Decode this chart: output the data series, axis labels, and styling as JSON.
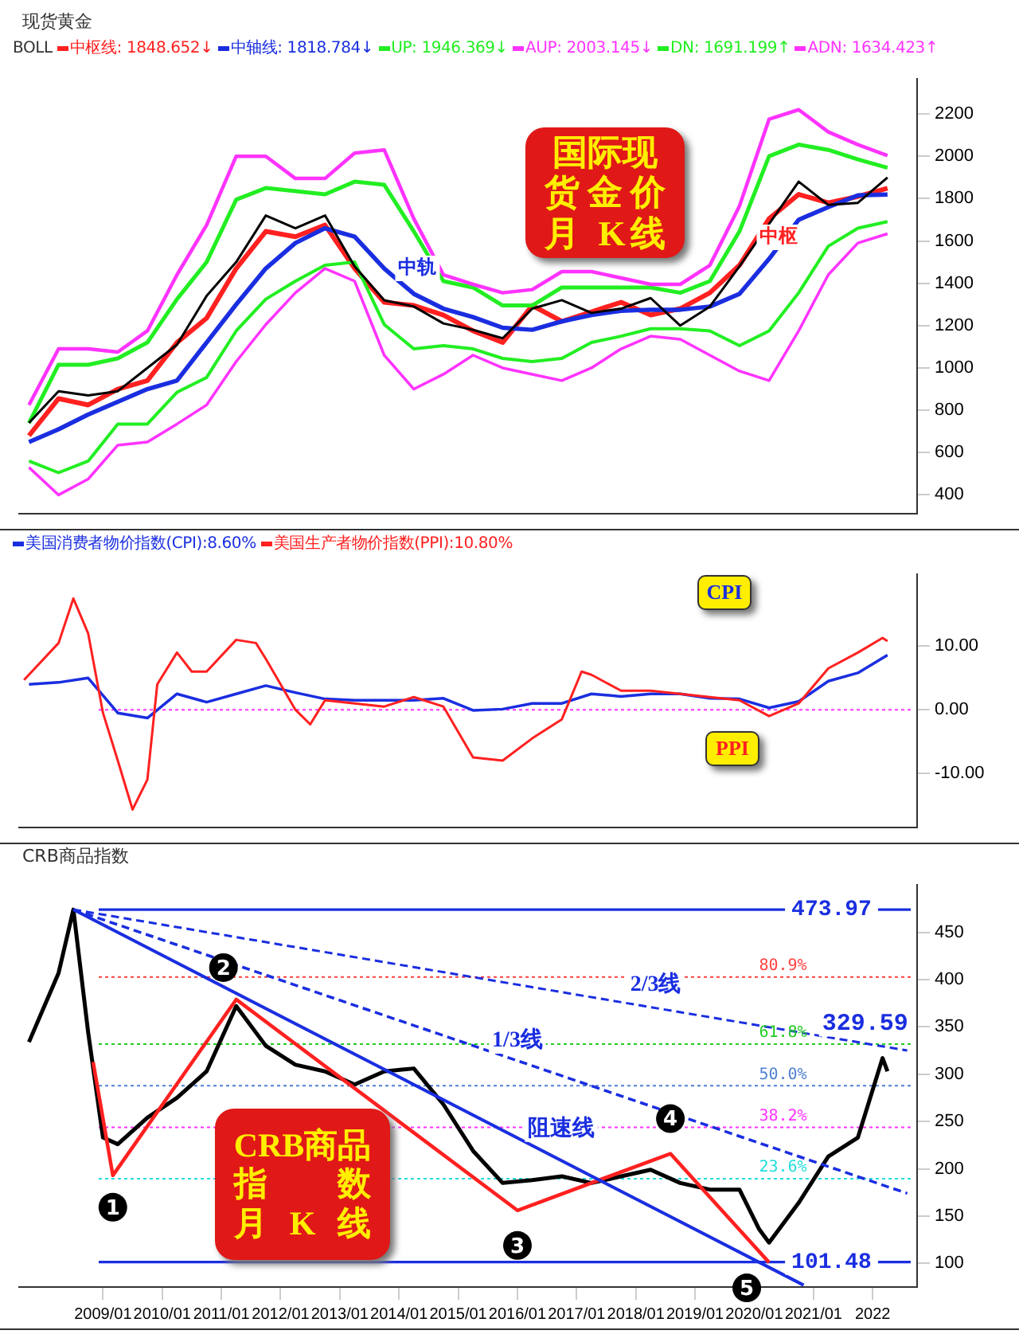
{
  "chart_data": [
    {
      "type": "line",
      "title": "现货黄金",
      "legend_title": "BOLL",
      "legend": "top",
      "grid": false,
      "tick_labels": "y",
      "xlim": [
        "2007-08",
        "2022-10"
      ],
      "ylim": [
        312,
        2365
      ],
      "yticks": [
        400,
        600,
        800,
        1000,
        1200,
        1400,
        1600,
        1800,
        2000,
        2200
      ],
      "x": [
        "2007-10",
        "2008-04",
        "2008-10",
        "2009-04",
        "2009-10",
        "2010-04",
        "2010-10",
        "2011-04",
        "2011-10",
        "2012-04",
        "2012-10",
        "2013-04",
        "2013-10",
        "2014-04",
        "2014-10",
        "2015-04",
        "2015-10",
        "2016-04",
        "2016-10",
        "2017-04",
        "2017-10",
        "2018-04",
        "2018-10",
        "2019-04",
        "2019-10",
        "2020-04",
        "2020-10",
        "2021-04",
        "2021-10",
        "2022-04"
      ],
      "series": [
        {
          "name": "中枢线: 1848.652↓",
          "color": "#ff2020",
          "values": [
            680,
            855,
            825,
            900,
            940,
            1120,
            1235,
            1470,
            1645,
            1620,
            1675,
            1470,
            1310,
            1295,
            1250,
            1175,
            1120,
            1295,
            1220,
            1265,
            1310,
            1250,
            1280,
            1355,
            1485,
            1705,
            1820,
            1780,
            1810,
            1849
          ]
        },
        {
          "name": "中轴线: 1818.784↓",
          "color": "#1a2ee0",
          "values": [
            650,
            710,
            780,
            840,
            900,
            940,
            1120,
            1300,
            1470,
            1590,
            1660,
            1620,
            1470,
            1350,
            1280,
            1240,
            1190,
            1180,
            1220,
            1250,
            1270,
            1275,
            1275,
            1290,
            1350,
            1515,
            1700,
            1760,
            1815,
            1819
          ]
        },
        {
          "name": "UP: 1946.369↓",
          "color": "#22ee22",
          "values": [
            740,
            1015,
            1015,
            1045,
            1120,
            1325,
            1500,
            1795,
            1850,
            1835,
            1820,
            1880,
            1865,
            1645,
            1410,
            1380,
            1295,
            1295,
            1380,
            1380,
            1380,
            1380,
            1355,
            1410,
            1645,
            2000,
            2055,
            2030,
            1985,
            1946
          ]
        },
        {
          "name": "AUP: 2003.145↓",
          "color": "#ff33ff",
          "values": [
            825,
            1090,
            1090,
            1075,
            1175,
            1440,
            1675,
            2000,
            2000,
            1895,
            1895,
            2015,
            2030,
            1705,
            1440,
            1395,
            1355,
            1370,
            1455,
            1455,
            1425,
            1395,
            1395,
            1485,
            1765,
            2175,
            2220,
            2115,
            2055,
            2003
          ]
        },
        {
          "name": "DN: 1691.199↑",
          "color": "#22ee22",
          "values": [
            560,
            505,
            560,
            735,
            735,
            885,
            955,
            1175,
            1325,
            1410,
            1485,
            1500,
            1205,
            1090,
            1105,
            1090,
            1045,
            1030,
            1045,
            1120,
            1150,
            1185,
            1185,
            1175,
            1105,
            1175,
            1355,
            1575,
            1660,
            1691
          ]
        },
        {
          "name": "ADN: 1634.423↑",
          "color": "#ff33ff",
          "values": [
            530,
            400,
            475,
            635,
            650,
            735,
            825,
            1030,
            1205,
            1355,
            1470,
            1410,
            1060,
            900,
            970,
            1060,
            1000,
            970,
            940,
            1000,
            1090,
            1150,
            1135,
            1060,
            985,
            940,
            1175,
            1440,
            1590,
            1634
          ]
        },
        {
          "color": "#000000",
          "values": [
            740,
            890,
            870,
            890,
            1000,
            1110,
            1340,
            1500,
            1720,
            1660,
            1720,
            1480,
            1320,
            1290,
            1210,
            1180,
            1140,
            1280,
            1320,
            1260,
            1280,
            1330,
            1200,
            1290,
            1480,
            1680,
            1880,
            1770,
            1780,
            1900
          ]
        }
      ],
      "annotations": [
        "国际现货金价月 K线",
        {
          "text": "中轨",
          "x": "2013-09",
          "y": 1470
        },
        {
          "text": "中枢",
          "x": "2020-06",
          "y": 1617
        }
      ]
    },
    {
      "type": "line",
      "legend": "top",
      "grid": false,
      "tick_labels": "y",
      "xlim": [
        "2007-08",
        "2022-10"
      ],
      "ylim": [
        -18.5,
        21.3
      ],
      "yticks": [
        {
          "value": 10,
          "label": "10.00"
        },
        {
          "value": 0,
          "label": "0.00"
        },
        {
          "value": -10,
          "label": "-10.00"
        }
      ],
      "x": [
        "2007-10",
        "2008-04",
        "2008-10",
        "2009-04",
        "2009-10",
        "2010-04",
        "2010-10",
        "2011-04",
        "2011-10",
        "2012-04",
        "2012-10",
        "2013-04",
        "2013-10",
        "2014-04",
        "2014-10",
        "2015-04",
        "2015-10",
        "2016-04",
        "2016-10",
        "2017-04",
        "2017-10",
        "2018-04",
        "2018-10",
        "2019-04",
        "2019-10",
        "2020-04",
        "2020-10",
        "2021-04",
        "2021-10",
        "2022-04"
      ],
      "series": [
        {
          "name": "美国消费者物价指数(CPI):8.60%",
          "color": "#1a2ee0",
          "values": [
            4.0,
            4.3,
            5.0,
            -0.5,
            -1.3,
            2.5,
            1.2,
            2.5,
            3.8,
            2.7,
            1.7,
            1.5,
            1.5,
            1.5,
            1.8,
            -0.1,
            0.1,
            1.0,
            1.0,
            2.5,
            2.1,
            2.5,
            2.5,
            1.8,
            1.7,
            0.3,
            1.3,
            4.5,
            5.8,
            8.6
          ]
        },
        {
          "name": "美国生产者物价指数(PPI):10.80%",
          "color": "#ff2020",
          "x": [
            "2007-09",
            "2008-04",
            "2008-07",
            "2008-10",
            "2009-01",
            "2009-04",
            "2009-07",
            "2009-10",
            "2009-12",
            "2010-04",
            "2010-07",
            "2010-10",
            "2011-04",
            "2011-08",
            "2011-10",
            "2012-04",
            "2012-07",
            "2012-10",
            "2013-04",
            "2013-10",
            "2014-04",
            "2014-10",
            "2015-04",
            "2015-10",
            "2016-04",
            "2016-10",
            "2017-02",
            "2017-04",
            "2017-10",
            "2018-04",
            "2018-10",
            "2019-04",
            "2019-10",
            "2020-04",
            "2020-10",
            "2021-04",
            "2021-10",
            "2022-03",
            "2022-04"
          ],
          "values": [
            4.7,
            10.5,
            17.5,
            12,
            -0.5,
            -8,
            -15.7,
            -11,
            4,
            9,
            6,
            6,
            11,
            10.5,
            8,
            0,
            -2.3,
            1.5,
            1.0,
            0.5,
            2.0,
            0.5,
            -7.5,
            -8.0,
            -4.5,
            -1.5,
            6.0,
            5.5,
            3.0,
            3.0,
            2.5,
            2.0,
            1.5,
            -1.0,
            1.0,
            6.5,
            9.0,
            11.3,
            10.8
          ]
        }
      ],
      "ref_lines": [
        {
          "axis": "y",
          "value": 0,
          "color": "#ff33ff",
          "line_style": "dotted"
        }
      ],
      "annotations": [
        "CPI",
        "PPI"
      ]
    },
    {
      "type": "line",
      "title": "CRB商品指数",
      "grid": false,
      "xlim": [
        "2007-08",
        "2022-10"
      ],
      "ylim": [
        75,
        500
      ],
      "yticks": [
        100,
        150,
        200,
        250,
        300,
        350,
        400,
        450
      ],
      "xticks": [
        {
          "value": "2009-01",
          "label": "2009/01"
        },
        {
          "value": "2010-01",
          "label": "2010/01"
        },
        {
          "value": "2011-01",
          "label": "2011/01"
        },
        {
          "value": "2012-01",
          "label": "2012/01"
        },
        {
          "value": "2013-01",
          "label": "2013/01"
        },
        {
          "value": "2014-01",
          "label": "2014/01"
        },
        {
          "value": "2015-01",
          "label": "2015/01"
        },
        {
          "value": "2016-01",
          "label": "2016/01"
        },
        {
          "value": "2017-01",
          "label": "2017/01"
        },
        {
          "value": "2018-01",
          "label": "2018/01"
        },
        {
          "value": "2019-01",
          "label": "2019/01"
        },
        {
          "value": "2020-01",
          "label": "2020/01"
        },
        {
          "value": "2021-01",
          "label": "2021/01"
        },
        {
          "value": "2022-01",
          "label": "2022"
        }
      ],
      "series": [
        {
          "color": "#000000",
          "x": [
            "2007-10",
            "2008-04",
            "2008-07",
            "2008-10",
            "2009-01",
            "2009-04",
            "2009-10",
            "2010-04",
            "2010-10",
            "2011-04",
            "2011-10",
            "2012-04",
            "2012-10",
            "2013-04",
            "2013-10",
            "2014-04",
            "2014-10",
            "2015-04",
            "2015-10",
            "2016-04",
            "2016-10",
            "2017-04",
            "2017-10",
            "2018-04",
            "2018-10",
            "2019-04",
            "2019-10",
            "2020-02",
            "2020-04",
            "2020-10",
            "2021-04",
            "2021-10",
            "2022-03",
            "2022-04"
          ],
          "values": [
            334,
            407,
            474,
            344,
            233,
            226,
            254,
            275,
            303,
            372,
            330,
            310,
            303,
            289,
            303,
            306,
            268,
            219,
            185,
            188,
            192,
            185,
            192,
            199,
            185,
            178,
            178,
            136,
            122,
            164,
            213,
            233,
            317,
            303
          ]
        },
        {
          "color": "#ff2020",
          "x": [
            "2008-11",
            "2009-03",
            "2011-04",
            "2016-01",
            "2018-08",
            "2020-04"
          ],
          "values": [
            313,
            193,
            379,
            156,
            216,
            101
          ]
        },
        {
          "color": "#1a2ee0",
          "x": [
            "2008-07",
            "2020-11"
          ],
          "values": [
            474,
            77
          ]
        },
        {
          "color": "#1a2ee0",
          "line_style": "dashed",
          "x": [
            "2008-07",
            "2022-08"
          ],
          "values": [
            474,
            174
          ]
        },
        {
          "color": "#1a2ee0",
          "line_style": "dashed",
          "x": [
            "2008-07",
            "2022-08"
          ],
          "values": [
            474,
            325
          ]
        }
      ],
      "ref_lines": [
        {
          "axis": "y",
          "value": 473.97,
          "label": "473.97",
          "color": "#1a2ee0",
          "line_style": "solid"
        },
        {
          "axis": "y",
          "value": 101.48,
          "label": "101.48",
          "color": "#1a2ee0",
          "line_style": "solid"
        },
        {
          "axis": "y",
          "value": 402.8,
          "color": "#ff4040",
          "line_style": "dotted"
        },
        {
          "axis": "y",
          "value": 331.7,
          "color": "#22cc22",
          "line_style": "dotted"
        },
        {
          "axis": "y",
          "value": 287.7,
          "color": "#4f7fd0",
          "line_style": "dotted"
        },
        {
          "axis": "y",
          "value": 243.8,
          "color": "#ff33ff",
          "line_style": "dotted"
        },
        {
          "axis": "y",
          "value": 189.4,
          "color": "#22dddd",
          "line_style": "dotted"
        }
      ],
      "annotations": [
        "CRB商品指数月 K 线",
        {
          "text": "1",
          "x": "2009-03",
          "y": 193
        },
        {
          "text": "2",
          "x": "2011-04",
          "y": 379
        },
        {
          "text": "3",
          "x": "2016-01",
          "y": 156
        },
        {
          "text": "4",
          "x": "2018-08",
          "y": 216
        },
        {
          "text": "5",
          "x": "2020-04",
          "y": 101
        },
        {
          "text": "阻速线",
          "x": "2016-08",
          "y": 215
        },
        {
          "text": "1/3线",
          "x": "2016-01",
          "y": 315
        },
        {
          "text": "2/3线",
          "x": "2018-05",
          "y": 371
        },
        {
          "text": "329.59",
          "x": "2022-04",
          "y": 329.59
        },
        {
          "text": "80.9%",
          "x": "2020-01",
          "y": 402.8
        },
        {
          "text": "61.8%",
          "x": "2020-01",
          "y": 331.7
        },
        {
          "text": "50.0%",
          "x": "2020-01",
          "y": 287.7
        },
        {
          "text": "38.2%",
          "x": "2020-01",
          "y": 243.8
        },
        {
          "text": "23.6%",
          "x": "2020-01",
          "y": 189.4
        }
      ]
    }
  ]
}
